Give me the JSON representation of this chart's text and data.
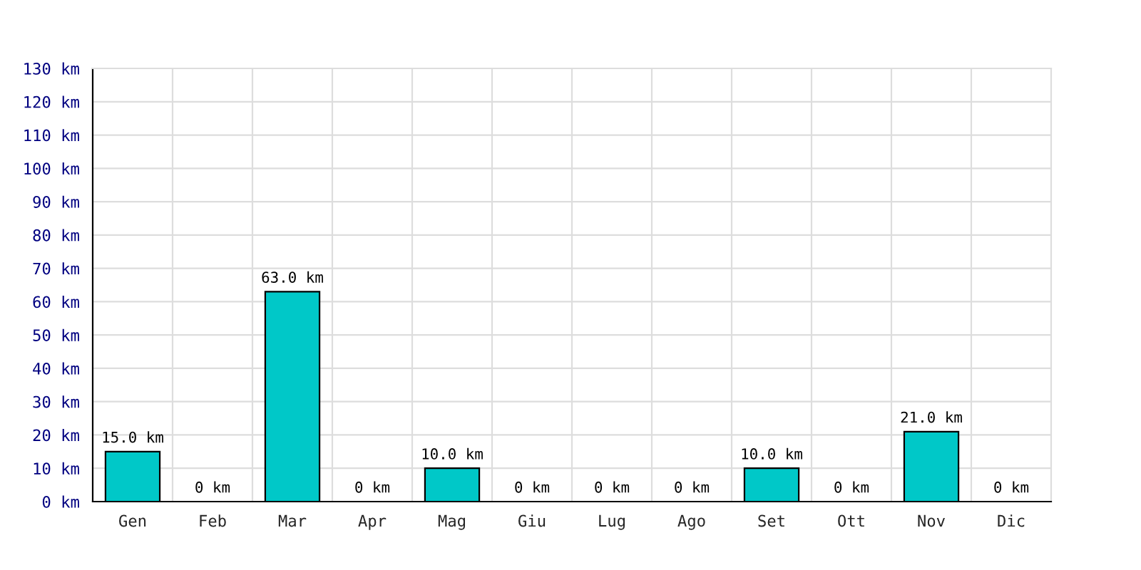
{
  "chart_data": {
    "type": "bar",
    "categories": [
      "Gen",
      "Feb",
      "Mar",
      "Apr",
      "Mag",
      "Giu",
      "Lug",
      "Ago",
      "Set",
      "Ott",
      "Nov",
      "Dic"
    ],
    "values": [
      15,
      0,
      63,
      0,
      10,
      0,
      0,
      0,
      10,
      0,
      21,
      0
    ],
    "value_labels": [
      "15.0 km",
      "0 km",
      "63.0 km",
      "0 km",
      "10.0 km",
      "0 km",
      "0 km",
      "0 km",
      "10.0 km",
      "0 km",
      "21.0 km",
      "0 km"
    ],
    "color": "#00c8c8",
    "ylim": [
      0,
      130
    ],
    "yticks": [
      {
        "value": 0,
        "label": "0 km"
      },
      {
        "value": 10,
        "label": "10 km"
      },
      {
        "value": 20,
        "label": "20 km"
      },
      {
        "value": 30,
        "label": "30 km"
      },
      {
        "value": 40,
        "label": "40 km"
      },
      {
        "value": 50,
        "label": "50 km"
      },
      {
        "value": 60,
        "label": "60 km"
      },
      {
        "value": 70,
        "label": "70 km"
      },
      {
        "value": 80,
        "label": "80 km"
      },
      {
        "value": 90,
        "label": "90 km"
      },
      {
        "value": 100,
        "label": "100 km"
      },
      {
        "value": 110,
        "label": "110 km"
      },
      {
        "value": 120,
        "label": "120 km"
      },
      {
        "value": 130,
        "label": "130 km"
      }
    ],
    "grid": true
  }
}
